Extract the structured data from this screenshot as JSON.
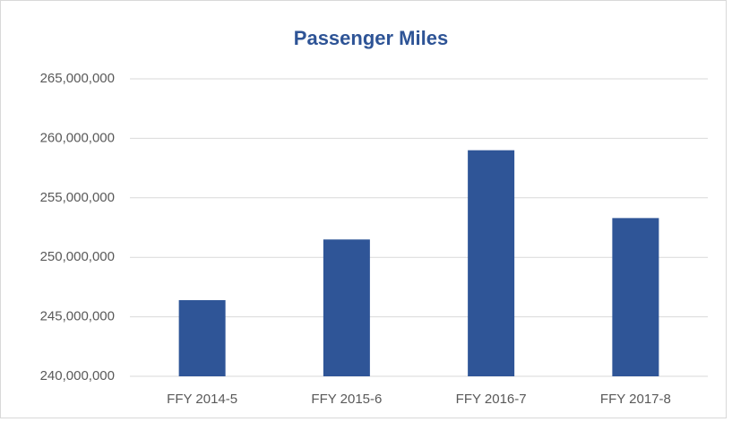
{
  "chart_data": {
    "type": "bar",
    "title": "Passenger Miles",
    "categories": [
      "FFY 2014-5",
      "FFY 2015-6",
      "FFY 2016-7",
      "FFY 2017-8"
    ],
    "values": [
      246400000,
      251500000,
      259000000,
      253300000
    ],
    "color": "#2f5597",
    "ylim": [
      240000000,
      265000000
    ],
    "yticks": [
      {
        "value": 240000000,
        "label": "240,000,000"
      },
      {
        "value": 245000000,
        "label": "245,000,000"
      },
      {
        "value": 250000000,
        "label": "250,000,000"
      },
      {
        "value": 255000000,
        "label": "255,000,000"
      },
      {
        "value": 260000000,
        "label": "260,000,000"
      },
      {
        "value": 265000000,
        "label": "265,000,000"
      }
    ],
    "grid": true
  }
}
